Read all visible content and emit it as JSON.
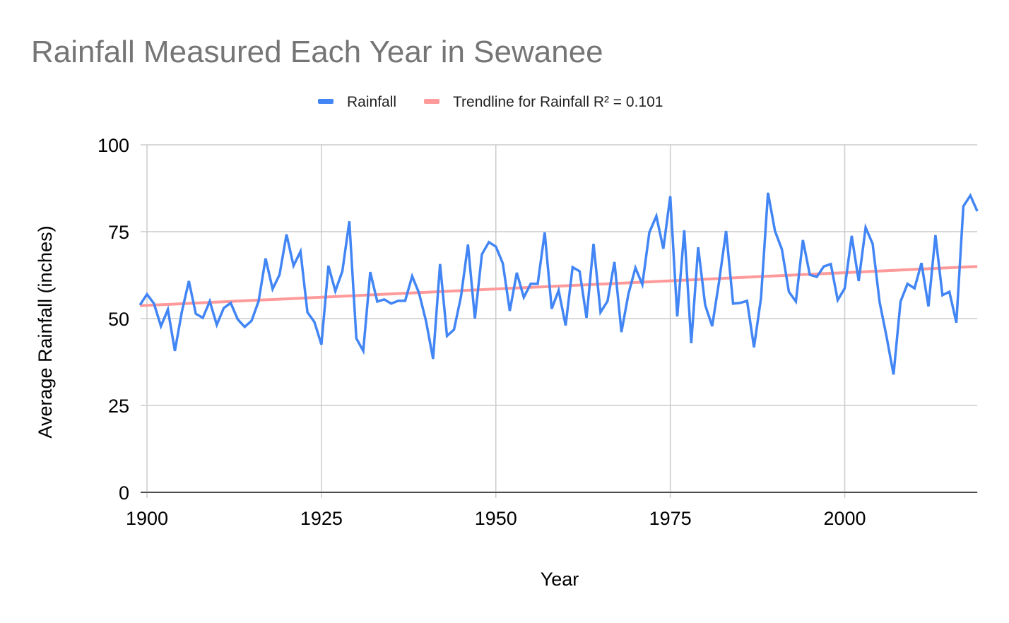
{
  "chart_data": {
    "type": "line",
    "title": "Rainfall Measured Each Year in Sewanee",
    "xlabel": "Year",
    "ylabel": "Average Rainfall (inches)",
    "xlim": [
      1899,
      2019
    ],
    "ylim": [
      0,
      100
    ],
    "grid": true,
    "legend_position": "top",
    "x_ticks": [
      1900,
      1925,
      1950,
      1975,
      2000
    ],
    "x_tick_labels": [
      "1900",
      "1925",
      "1950",
      "1975",
      "2000"
    ],
    "y_ticks": [
      0,
      25,
      50,
      75,
      100
    ],
    "y_tick_labels": [
      "0",
      "25",
      "50",
      "75",
      "100"
    ],
    "x": [
      1899,
      1900,
      1901,
      1902,
      1903,
      1904,
      1905,
      1906,
      1907,
      1908,
      1909,
      1910,
      1911,
      1912,
      1913,
      1914,
      1915,
      1916,
      1917,
      1918,
      1919,
      1920,
      1921,
      1922,
      1923,
      1924,
      1925,
      1926,
      1927,
      1928,
      1929,
      1930,
      1931,
      1932,
      1933,
      1934,
      1935,
      1936,
      1937,
      1938,
      1939,
      1940,
      1941,
      1942,
      1943,
      1944,
      1945,
      1946,
      1947,
      1948,
      1949,
      1950,
      1951,
      1952,
      1953,
      1954,
      1955,
      1956,
      1957,
      1958,
      1959,
      1960,
      1961,
      1962,
      1963,
      1964,
      1965,
      1966,
      1967,
      1968,
      1969,
      1970,
      1971,
      1972,
      1973,
      1974,
      1975,
      1976,
      1977,
      1978,
      1979,
      1980,
      1981,
      1982,
      1983,
      1984,
      1985,
      1986,
      1987,
      1988,
      1989,
      1990,
      1991,
      1992,
      1993,
      1994,
      1995,
      1996,
      1997,
      1998,
      1999,
      2000,
      2001,
      2002,
      2003,
      2004,
      2005,
      2006,
      2007,
      2008,
      2009,
      2010,
      2011,
      2012,
      2013,
      2014,
      2015,
      2016,
      2017,
      2018,
      2019
    ],
    "series": [
      {
        "name": "Rainfall",
        "color": "#4285f4",
        "values": [
          53.9,
          57,
          54.3,
          47.8,
          52.6,
          40.7,
          52,
          60.8,
          51.4,
          50.2,
          55,
          48.2,
          53,
          54.5,
          49.8,
          47.6,
          49.4,
          55,
          67.3,
          58.5,
          62.6,
          74.2,
          65.2,
          69.3,
          51.8,
          49,
          42.5,
          65.2,
          57.9,
          63.6,
          78,
          44.3,
          40.7,
          63.4,
          54.9,
          55.5,
          54.3,
          55.1,
          55.1,
          62.2,
          57.3,
          49.2,
          38.4,
          65.7,
          45,
          46.8,
          56.3,
          71.3,
          50,
          68.5,
          72,
          70.7,
          65.9,
          52.2,
          63.2,
          56.1,
          60,
          60,
          74.8,
          52.8,
          58.1,
          48,
          64.8,
          63.6,
          50.2,
          71.5,
          51.8,
          55,
          66.3,
          46.1,
          57.1,
          64.6,
          59.8,
          74.8,
          79.5,
          70.1,
          85.2,
          50.6,
          75.4,
          42.9,
          70.5,
          53.9,
          47.8,
          60.8,
          75.2,
          54.3,
          54.5,
          55.1,
          41.7,
          55.9,
          86.2,
          75.2,
          69.9,
          57.7,
          54.9,
          72.6,
          62.6,
          62,
          65,
          65.7,
          55.3,
          58.7,
          73.8,
          60.8,
          76.2,
          71.5,
          54.7,
          44.7,
          33.9,
          54.9,
          60,
          58.7,
          66,
          53.5,
          74,
          56.7,
          57.7,
          48.8,
          82.3,
          85.4,
          80.9
        ]
      },
      {
        "name": "Trendline for Rainfall R² = 0.101",
        "color": "#ff9a9a",
        "type": "trendline",
        "start": [
          1899,
          53.7
        ],
        "end": [
          2019,
          65.0
        ]
      }
    ]
  }
}
